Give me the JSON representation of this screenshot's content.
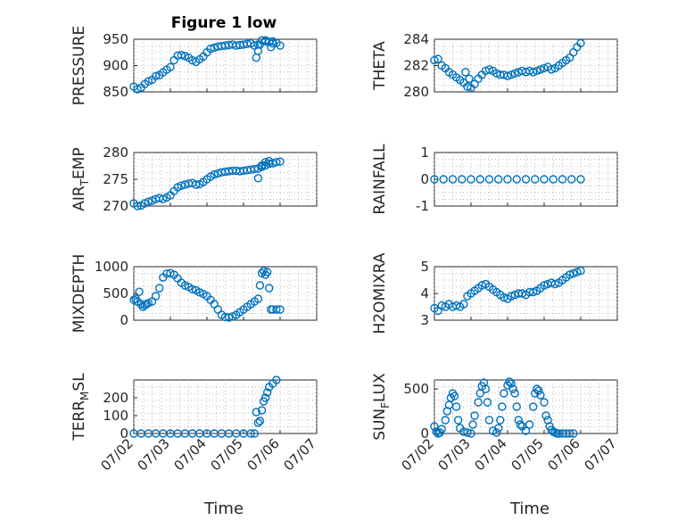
{
  "figure": {
    "title": "Figure 1 low",
    "marker_color": "#0072BD",
    "axis_color": "#262626",
    "x_axis_label": "Time"
  },
  "chart_data": [
    {
      "type": "scatter",
      "panel": "top-left",
      "title": "Figure 1 low",
      "ylabel": "PRESSURE",
      "ylim": [
        850,
        950
      ],
      "yticks": [
        850,
        900,
        950
      ],
      "xlim": [
        0,
        5
      ],
      "grid": true,
      "x": [
        0.0,
        0.1,
        0.2,
        0.3,
        0.4,
        0.5,
        0.6,
        0.7,
        0.8,
        0.9,
        1.0,
        1.1,
        1.2,
        1.3,
        1.4,
        1.5,
        1.6,
        1.7,
        1.8,
        1.9,
        2.0,
        2.1,
        2.2,
        2.3,
        2.4,
        2.5,
        2.6,
        2.7,
        2.8,
        2.9,
        3.0,
        3.1,
        3.2,
        3.3,
        3.4,
        3.5,
        3.6,
        3.7,
        3.8,
        3.9,
        4.0
      ],
      "y": [
        860,
        855,
        858,
        865,
        870,
        873,
        880,
        882,
        887,
        892,
        897,
        910,
        919,
        920,
        918,
        915,
        910,
        907,
        912,
        917,
        925,
        932,
        934,
        936,
        937,
        938,
        939,
        940,
        938,
        939,
        940,
        941,
        942,
        938,
        940,
        948,
        946,
        945,
        942,
        943,
        938
      ],
      "outliers": {
        "x": [
          3.35,
          3.4,
          3.45,
          3.6,
          3.75,
          3.8
        ],
        "y": [
          915,
          928,
          940,
          948,
          935,
          946
        ]
      }
    },
    {
      "type": "scatter",
      "panel": "top-right",
      "ylabel": "THETA",
      "ylim": [
        280,
        284
      ],
      "yticks": [
        280,
        282,
        284
      ],
      "xlim": [
        0,
        5
      ],
      "grid": true,
      "x": [
        0.0,
        0.1,
        0.2,
        0.3,
        0.4,
        0.5,
        0.6,
        0.7,
        0.8,
        0.85,
        0.9,
        0.95,
        1.0,
        1.1,
        1.2,
        1.3,
        1.4,
        1.5,
        1.6,
        1.7,
        1.8,
        1.9,
        2.0,
        2.1,
        2.2,
        2.3,
        2.4,
        2.5,
        2.6,
        2.7,
        2.8,
        2.9,
        3.0,
        3.1,
        3.2,
        3.3,
        3.4,
        3.5,
        3.6,
        3.7,
        3.8,
        3.9,
        4.0
      ],
      "y": [
        282.4,
        282.5,
        282.0,
        281.8,
        281.5,
        281.3,
        281.1,
        280.9,
        280.7,
        281.5,
        280.4,
        281.0,
        280.3,
        280.6,
        281.0,
        281.3,
        281.6,
        281.7,
        281.6,
        281.4,
        281.3,
        281.3,
        281.2,
        281.3,
        281.4,
        281.5,
        281.6,
        281.5,
        281.6,
        281.5,
        281.6,
        281.7,
        281.8,
        281.9,
        281.7,
        281.8,
        282.0,
        282.2,
        282.4,
        282.6,
        283.0,
        283.4,
        283.7
      ]
    },
    {
      "type": "scatter",
      "panel": "second-left",
      "ylabel": "AIR_TEMP",
      "ylabel_parts": {
        "base": "AIR",
        "sub": "T",
        "rest": "EMP"
      },
      "ylim": [
        270,
        280
      ],
      "yticks": [
        270,
        275,
        280
      ],
      "xlim": [
        0,
        5
      ],
      "grid": true,
      "x": [
        0.0,
        0.1,
        0.2,
        0.3,
        0.4,
        0.5,
        0.6,
        0.7,
        0.8,
        0.9,
        1.0,
        1.1,
        1.2,
        1.3,
        1.4,
        1.5,
        1.6,
        1.7,
        1.8,
        1.9,
        2.0,
        2.1,
        2.2,
        2.3,
        2.4,
        2.5,
        2.6,
        2.7,
        2.8,
        2.9,
        3.0,
        3.1,
        3.2,
        3.3,
        3.4,
        3.5,
        3.6,
        3.7,
        3.8,
        3.9,
        4.0
      ],
      "y": [
        270.5,
        270.0,
        270.1,
        270.5,
        270.8,
        271.0,
        271.3,
        271.5,
        271.3,
        271.6,
        272.0,
        272.8,
        273.5,
        273.8,
        274.0,
        274.2,
        274.3,
        274.0,
        274.1,
        274.5,
        275.0,
        275.5,
        275.9,
        276.1,
        276.3,
        276.4,
        276.5,
        276.6,
        276.6,
        276.5,
        276.6,
        276.7,
        276.8,
        276.9,
        277.0,
        277.3,
        277.6,
        277.9,
        278.0,
        278.2,
        278.3
      ],
      "outliers": {
        "x": [
          3.4,
          3.5,
          3.6,
          3.7
        ],
        "y": [
          275.2,
          277.6,
          278.2,
          278.4
        ]
      }
    },
    {
      "type": "scatter",
      "panel": "second-right",
      "ylabel": "RAINFALL",
      "ylim": [
        -1,
        1
      ],
      "yticks": [
        -1,
        0,
        1
      ],
      "xlim": [
        0,
        5
      ],
      "grid": true,
      "x": [
        0.0,
        0.25,
        0.5,
        0.75,
        1.0,
        1.25,
        1.5,
        1.75,
        2.0,
        2.25,
        2.5,
        2.75,
        3.0,
        3.25,
        3.5,
        3.75,
        4.0
      ],
      "y": [
        0,
        0,
        0,
        0,
        0,
        0,
        0,
        0,
        0,
        0,
        0,
        0,
        0,
        0,
        0,
        0,
        0
      ]
    },
    {
      "type": "scatter",
      "panel": "third-left",
      "ylabel": "MIXDEPTH",
      "ylim": [
        0,
        1000
      ],
      "yticks": [
        0,
        500,
        1000
      ],
      "xlim": [
        0,
        5
      ],
      "grid": true,
      "x": [
        0.0,
        0.05,
        0.1,
        0.15,
        0.2,
        0.25,
        0.3,
        0.35,
        0.4,
        0.5,
        0.6,
        0.7,
        0.8,
        0.9,
        1.0,
        1.1,
        1.2,
        1.3,
        1.4,
        1.5,
        1.6,
        1.7,
        1.8,
        1.9,
        2.0,
        2.1,
        2.2,
        2.3,
        2.4,
        2.5,
        2.6,
        2.7,
        2.8,
        2.9,
        3.0,
        3.1,
        3.2,
        3.3,
        3.4
      ],
      "y": [
        380,
        400,
        350,
        530,
        300,
        250,
        280,
        300,
        320,
        350,
        450,
        600,
        800,
        870,
        880,
        850,
        780,
        700,
        650,
        620,
        580,
        560,
        520,
        490,
        450,
        380,
        300,
        200,
        100,
        60,
        50,
        70,
        100,
        150,
        200,
        250,
        300,
        350,
        400
      ],
      "outliers": {
        "x": [
          3.45,
          3.5,
          3.55,
          3.6,
          3.65,
          3.7,
          3.75,
          3.8,
          3.9,
          4.0
        ],
        "y": [
          650,
          880,
          920,
          850,
          900,
          600,
          200,
          200,
          200,
          200
        ]
      }
    },
    {
      "type": "scatter",
      "panel": "third-right",
      "ylabel": "H2OMIXRA",
      "ylim": [
        3,
        5
      ],
      "yticks": [
        3,
        4,
        5
      ],
      "xlim": [
        0,
        5
      ],
      "grid": true,
      "x": [
        0.0,
        0.1,
        0.2,
        0.3,
        0.4,
        0.5,
        0.6,
        0.7,
        0.8,
        0.9,
        1.0,
        1.1,
        1.2,
        1.3,
        1.4,
        1.5,
        1.6,
        1.7,
        1.8,
        1.9,
        2.0,
        2.1,
        2.2,
        2.3,
        2.4,
        2.5,
        2.6,
        2.7,
        2.8,
        2.9,
        3.0,
        3.1,
        3.2,
        3.3,
        3.4,
        3.5,
        3.6,
        3.7,
        3.8,
        3.9,
        4.0
      ],
      "y": [
        3.45,
        3.35,
        3.55,
        3.5,
        3.6,
        3.5,
        3.55,
        3.5,
        3.6,
        3.9,
        4.0,
        4.1,
        4.2,
        4.3,
        4.35,
        4.25,
        4.15,
        4.05,
        3.95,
        3.85,
        3.8,
        3.9,
        3.95,
        4.0,
        4.0,
        3.95,
        4.05,
        4.05,
        4.1,
        4.2,
        4.3,
        4.35,
        4.4,
        4.35,
        4.4,
        4.5,
        4.6,
        4.7,
        4.75,
        4.8,
        4.85
      ]
    },
    {
      "type": "scatter",
      "panel": "bottom-left",
      "ylabel": "TERR_MSL",
      "ylabel_parts": {
        "base": "TERR",
        "sub": "M",
        "rest": "SL"
      },
      "ylim": [
        0,
        300
      ],
      "yticks": [
        0,
        100,
        200
      ],
      "xlim": [
        0,
        5
      ],
      "grid": true,
      "xticks": [
        "07/02",
        "07/03",
        "07/04",
        "07/05",
        "07/06",
        "07/07"
      ],
      "xlabel": "Time",
      "x": [
        0.0,
        0.2,
        0.4,
        0.6,
        0.8,
        1.0,
        1.2,
        1.4,
        1.6,
        1.8,
        2.0,
        2.2,
        2.4,
        2.6,
        2.8,
        3.0,
        3.2,
        3.3,
        3.35,
        3.4,
        3.45,
        3.5,
        3.55,
        3.6,
        3.65,
        3.7,
        3.8,
        3.9
      ],
      "y": [
        0,
        0,
        0,
        0,
        0,
        0,
        0,
        0,
        0,
        0,
        0,
        0,
        0,
        0,
        0,
        0,
        0,
        0,
        120,
        60,
        70,
        130,
        180,
        200,
        230,
        260,
        280,
        300
      ]
    },
    {
      "type": "scatter",
      "panel": "bottom-right",
      "ylabel": "SUN_FLUX",
      "ylabel_parts": {
        "base": "SUN",
        "sub": "F",
        "rest": "LUX"
      },
      "ylim": [
        0,
        600
      ],
      "yticks": [
        0,
        500
      ],
      "xlim": [
        0,
        5
      ],
      "grid": true,
      "xticks": [
        "07/02",
        "07/03",
        "07/04",
        "07/05",
        "07/06",
        "07/07"
      ],
      "xlabel": "Time",
      "x": [
        0.0,
        0.05,
        0.1,
        0.15,
        0.2,
        0.3,
        0.35,
        0.4,
        0.45,
        0.5,
        0.55,
        0.6,
        0.65,
        0.7,
        0.8,
        0.9,
        1.0,
        1.05,
        1.1,
        1.2,
        1.25,
        1.3,
        1.35,
        1.4,
        1.45,
        1.5,
        1.6,
        1.7,
        1.75,
        1.8,
        1.85,
        1.9,
        2.0,
        2.05,
        2.1,
        2.15,
        2.2,
        2.25,
        2.3,
        2.35,
        2.4,
        2.5,
        2.6,
        2.7,
        2.75,
        2.8,
        2.85,
        2.9,
        3.0,
        3.05,
        3.1,
        3.15,
        3.2,
        3.25,
        3.3,
        3.35,
        3.4,
        3.5,
        3.6,
        3.7,
        3.8
      ],
      "y": [
        80,
        20,
        0,
        10,
        50,
        150,
        250,
        320,
        400,
        450,
        420,
        300,
        150,
        60,
        20,
        10,
        0,
        100,
        200,
        350,
        450,
        530,
        570,
        500,
        350,
        150,
        30,
        10,
        60,
        150,
        300,
        450,
        540,
        580,
        560,
        500,
        450,
        300,
        150,
        100,
        80,
        30,
        100,
        300,
        450,
        500,
        480,
        430,
        350,
        200,
        150,
        80,
        40,
        20,
        10,
        0,
        0,
        0,
        0,
        0,
        0
      ]
    }
  ]
}
